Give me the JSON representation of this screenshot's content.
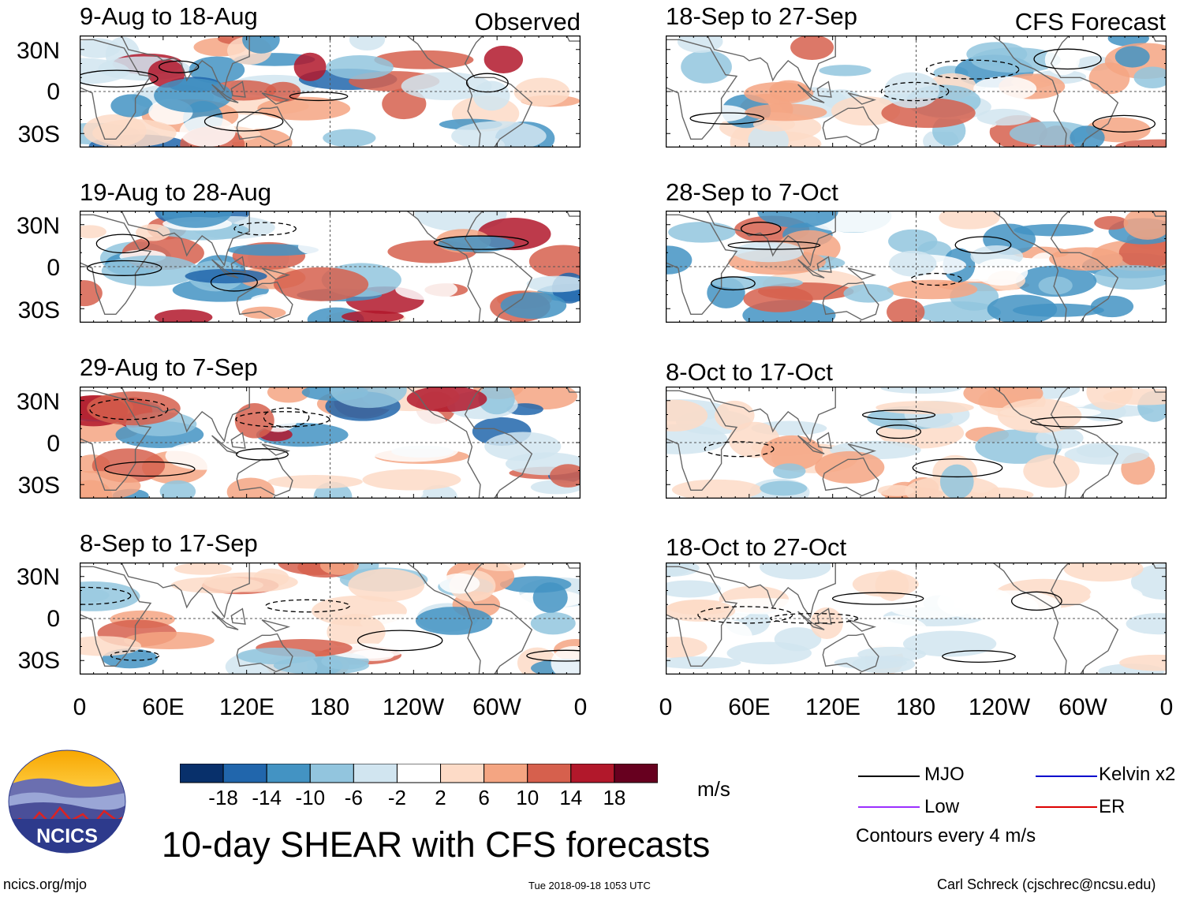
{
  "headers": {
    "left": "Observed",
    "right": "CFS Forecast"
  },
  "lat_labels": [
    "30N",
    "0",
    "30S"
  ],
  "lon_labels": [
    "0",
    "60E",
    "120E",
    "180",
    "120W",
    "60W",
    "0"
  ],
  "panels": {
    "left": [
      {
        "period": "9-Aug to 18-Aug"
      },
      {
        "period": "19-Aug to 28-Aug"
      },
      {
        "period": "29-Aug to 7-Sep"
      },
      {
        "period": "8-Sep to 17-Sep"
      }
    ],
    "right": [
      {
        "period": "18-Sep to 27-Sep"
      },
      {
        "period": "28-Sep to 7-Oct"
      },
      {
        "period": "8-Oct to 17-Oct"
      },
      {
        "period": "18-Oct to 27-Oct"
      }
    ]
  },
  "colorbar": {
    "unit": "m/s",
    "labels": [
      "-18",
      "-14",
      "-10",
      "-6",
      "-2",
      "2",
      "6",
      "10",
      "14",
      "18"
    ],
    "colors": [
      "#08306b",
      "#2166ac",
      "#4393c3",
      "#92c5de",
      "#d1e5f0",
      "#ffffff",
      "#fddbc7",
      "#f4a582",
      "#d6604d",
      "#b2182b",
      "#67001f"
    ]
  },
  "legend": {
    "items": [
      {
        "label": "MJO",
        "color": "#000000"
      },
      {
        "label": "Low",
        "color": "#9b30ff"
      },
      {
        "label": "Kelvin x2",
        "color": "#0000cc"
      },
      {
        "label": "ER",
        "color": "#dd0000"
      }
    ],
    "note": "Contours every 4 m/s"
  },
  "title": "10-day SHEAR with CFS forecasts",
  "logo_text": "NCICS",
  "footer": {
    "url": "ncics.org/mjo",
    "timestamp": "Tue 2018-09-18 1053 UTC",
    "credit": "Carl Schreck (cjschrec@ncsu.edu)"
  },
  "chart_data": {
    "type": "heatmap",
    "variable": "10-day SHEAR anomaly",
    "unit": "m/s",
    "lat_range": [
      -40,
      40
    ],
    "lon_range": [
      0,
      360
    ],
    "lat_ticks": [
      "30N",
      "0",
      "30S"
    ],
    "lon_ticks": [
      "0",
      "60E",
      "120E",
      "180",
      "120W",
      "60W",
      "0"
    ],
    "color_levels": [
      -18,
      -14,
      -10,
      -6,
      -2,
      2,
      6,
      10,
      14,
      18
    ],
    "contour_interval": "4 m/s",
    "observed_periods": [
      "9-Aug to 18-Aug",
      "19-Aug to 28-Aug",
      "29-Aug to 7-Sep",
      "8-Sep to 17-Sep"
    ],
    "forecast_periods": [
      "18-Sep to 27-Sep",
      "28-Sep to 7-Oct",
      "8-Oct to 17-Oct",
      "18-Oct to 27-Oct"
    ]
  }
}
